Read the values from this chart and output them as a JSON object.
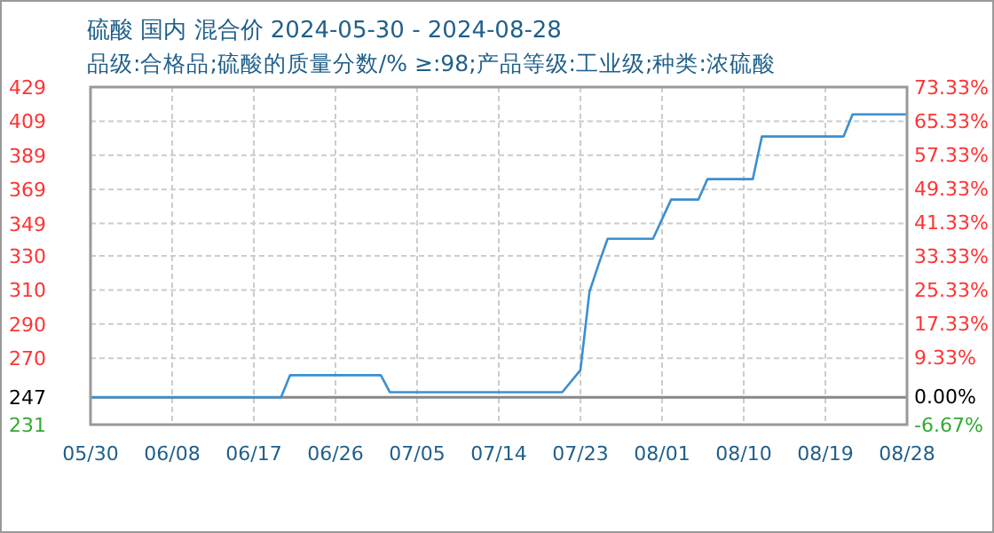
{
  "chart_data": {
    "type": "line",
    "title": "硫酸 国内 混合价 2024-05-30 - 2024-08-28",
    "subtitle": "品级:合格品;硫酸的质量分数/% ≥:98;产品等级:工业级;种类:浓硫酸",
    "x": [
      "2024-05-30",
      "2024-06-20",
      "2024-06-21",
      "2024-07-01",
      "2024-07-02",
      "2024-07-21",
      "2024-07-23",
      "2024-07-24",
      "2024-07-25",
      "2024-07-26",
      "2024-07-31",
      "2024-08-02",
      "2024-08-05",
      "2024-08-06",
      "2024-08-11",
      "2024-08-12",
      "2024-08-21",
      "2024-08-22",
      "2024-08-28"
    ],
    "values": [
      247,
      247,
      260,
      260,
      250,
      250,
      263,
      309,
      325,
      340,
      340,
      363,
      363,
      375,
      375,
      400,
      400,
      413,
      413
    ],
    "color": "#3a8fd0",
    "xlim": [
      "2024-05-30",
      "2024-08-28"
    ],
    "xticks": [
      {
        "value": "2024-05-30",
        "label": "05/30"
      },
      {
        "value": "2024-06-08",
        "label": "06/08"
      },
      {
        "value": "2024-06-17",
        "label": "06/17"
      },
      {
        "value": "2024-06-26",
        "label": "06/26"
      },
      {
        "value": "2024-07-05",
        "label": "07/05"
      },
      {
        "value": "2024-07-14",
        "label": "07/14"
      },
      {
        "value": "2024-07-23",
        "label": "07/23"
      },
      {
        "value": "2024-08-01",
        "label": "08/01"
      },
      {
        "value": "2024-08-10",
        "label": "08/10"
      },
      {
        "value": "2024-08-19",
        "label": "08/19"
      },
      {
        "value": "2024-08-28",
        "label": "08/28"
      }
    ],
    "ylim": [
      231,
      429
    ],
    "yticks": [
      231,
      247,
      270,
      290,
      310,
      330,
      349,
      369,
      389,
      409,
      429
    ],
    "y2lim": [
      -6.67,
      73.33
    ],
    "y2ticks": [
      {
        "value": -6.67,
        "label": "-6.67%"
      },
      {
        "value": 0,
        "label": "0.00%"
      },
      {
        "value": 9.33,
        "label": "9.33%"
      },
      {
        "value": 17.33,
        "label": "17.33%"
      },
      {
        "value": 25.33,
        "label": "25.33%"
      },
      {
        "value": 33.33,
        "label": "33.33%"
      },
      {
        "value": 41.33,
        "label": "41.33%"
      },
      {
        "value": 49.33,
        "label": "49.33%"
      },
      {
        "value": 57.33,
        "label": "57.33%"
      },
      {
        "value": 65.33,
        "label": "65.33%"
      },
      {
        "value": 73.33,
        "label": "73.33%"
      }
    ],
    "ref_lines": [
      {
        "axis": "y",
        "value": 247,
        "color": "#888888"
      }
    ],
    "grid": true,
    "line_style": "solid"
  }
}
